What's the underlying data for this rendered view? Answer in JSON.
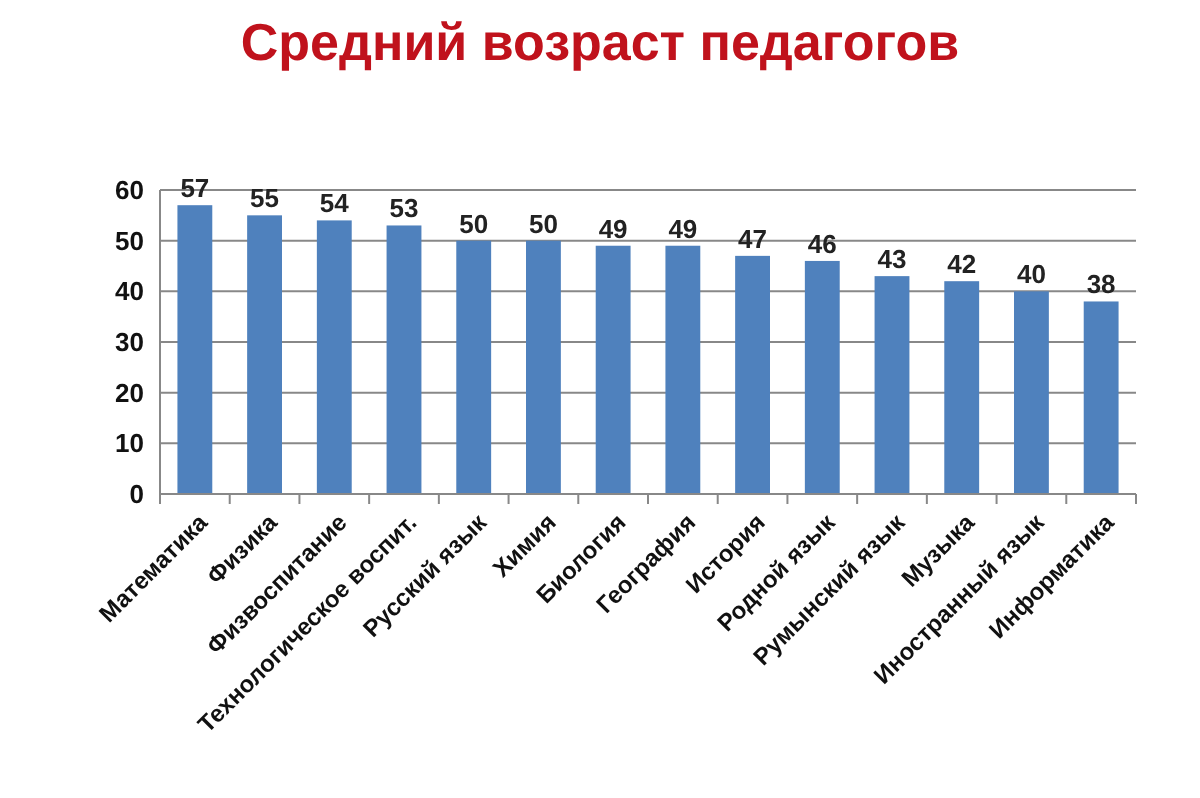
{
  "chart_data": {
    "type": "bar",
    "title": "Средний возраст педагогов",
    "categories": [
      "Математика",
      "Физика",
      "Физвоспитание",
      "Технологическое воспит.",
      "Русский язык",
      "Химия",
      "Биология",
      "География",
      "История",
      "Родной язык",
      "Румынский язык",
      "Музыка",
      "Иностранный язык",
      "Информатика"
    ],
    "values": [
      57,
      55,
      54,
      53,
      50,
      50,
      49,
      49,
      47,
      46,
      43,
      42,
      40,
      38
    ],
    "color": "#4f81bd",
    "ylim": [
      0,
      60
    ],
    "yticks": [
      0,
      10,
      20,
      30,
      40,
      50,
      60
    ],
    "grid": "y",
    "data_labels": true
  }
}
